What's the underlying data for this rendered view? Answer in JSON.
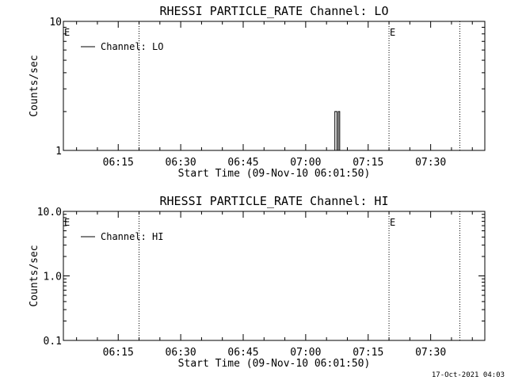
{
  "footer": {
    "timestamp": "17-Oct-2021 04:03"
  },
  "chart_data": [
    {
      "type": "line",
      "title": "RHESSI PARTICLE_RATE Channel: LO",
      "xlabel": "Start Time (09-Nov-10 06:01:50)",
      "ylabel": "Counts/sec",
      "yscale": "log",
      "ylim": [
        1,
        10
      ],
      "xlim": [
        "06:01:50",
        "07:43:00"
      ],
      "y_ticks": [
        "10",
        "1"
      ],
      "x_ticks": [
        "06:15",
        "06:30",
        "06:45",
        "07:00",
        "07:15",
        "07:30"
      ],
      "legend": {
        "position": "top-left",
        "label": "Channel: LO"
      },
      "event_markers": [
        {
          "time": "06:01:50",
          "label": "E"
        },
        {
          "time": "06:20:00"
        },
        {
          "time": "07:20:00",
          "label": "E"
        },
        {
          "time": "07:37:00"
        }
      ],
      "series": [
        {
          "name": "Channel: LO",
          "x": [
            "07:06:50",
            "07:07:00",
            "07:07:10",
            "07:07:20",
            "07:07:30",
            "07:07:40",
            "07:07:50",
            "07:08:00",
            "07:08:10",
            "07:08:20"
          ],
          "y": [
            1,
            2,
            2,
            2,
            1,
            1,
            2,
            2,
            1,
            1
          ]
        }
      ]
    },
    {
      "type": "line",
      "title": "RHESSI PARTICLE_RATE Channel: HI",
      "xlabel": "Start Time (09-Nov-10 06:01:50)",
      "ylabel": "Counts/sec",
      "yscale": "log",
      "ylim": [
        0.1,
        10
      ],
      "xlim": [
        "06:01:50",
        "07:43:00"
      ],
      "y_ticks": [
        "10.0",
        "1.0",
        "0.1"
      ],
      "x_ticks": [
        "06:15",
        "06:30",
        "06:45",
        "07:00",
        "07:15",
        "07:30"
      ],
      "legend": {
        "position": "top-left",
        "label": "Channel: HI"
      },
      "event_markers": [
        {
          "time": "06:01:50",
          "label": "E"
        },
        {
          "time": "06:20:00"
        },
        {
          "time": "07:20:00",
          "label": "E"
        },
        {
          "time": "07:37:00"
        }
      ],
      "series": [
        {
          "name": "Channel: HI",
          "x": [],
          "y": []
        }
      ]
    }
  ]
}
